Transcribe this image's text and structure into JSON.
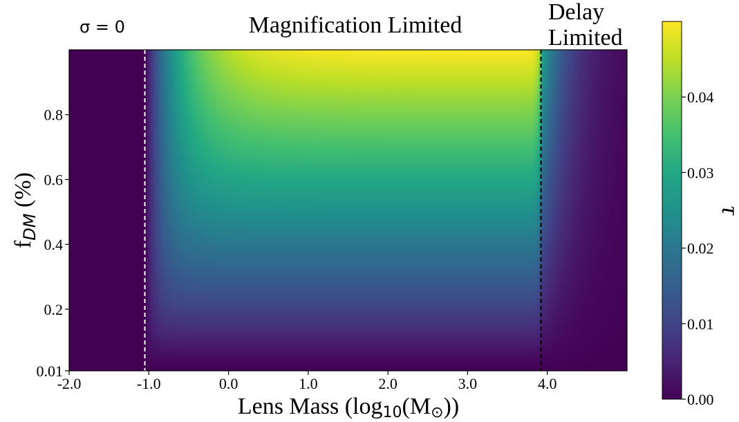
{
  "chart_data": {
    "type": "heatmap",
    "annotation": "σ = 0",
    "regions": [
      {
        "lines": [
          "Magnification Limited"
        ]
      },
      {
        "lines": [
          "Delay",
          "Limited"
        ]
      }
    ],
    "xlabel": {
      "text": "Lens Mass (log",
      "sub": "10",
      "mid": "(M",
      "sun": "⊙",
      "end": "))"
    },
    "ylabel": {
      "text": "f",
      "sub": "DM",
      "end": " (%)"
    },
    "xlim": [
      -2.0,
      5.0
    ],
    "ylim": [
      0.01,
      1.0
    ],
    "x_ticks": [
      {
        "value": -2.0,
        "label": "-2.0"
      },
      {
        "value": -1.0,
        "label": "-1.0"
      },
      {
        "value": 0.0,
        "label": "0.0"
      },
      {
        "value": 1.0,
        "label": "1.0"
      },
      {
        "value": 2.0,
        "label": "2.0"
      },
      {
        "value": 3.0,
        "label": "3.0"
      },
      {
        "value": 4.0,
        "label": "4.0"
      }
    ],
    "y_ticks": [
      {
        "value": 0.01,
        "label": "0.01"
      },
      {
        "value": 0.2,
        "label": "0.2"
      },
      {
        "value": 0.4,
        "label": "0.4"
      },
      {
        "value": 0.6,
        "label": "0.6"
      },
      {
        "value": 0.8,
        "label": "0.8"
      }
    ],
    "vlines": [
      {
        "x": -1.05,
        "color": "#ffffff",
        "style": "dashed"
      },
      {
        "x": 3.92,
        "color": "#000000",
        "style": "dashed"
      }
    ],
    "colorbar": {
      "label": "τ",
      "colormap": "viridis",
      "range": [
        0.0,
        0.05
      ],
      "ticks": [
        {
          "value": 0.0,
          "label": "0.00"
        },
        {
          "value": 0.01,
          "label": "0.01"
        },
        {
          "value": 0.02,
          "label": "0.02"
        },
        {
          "value": 0.03,
          "label": "0.03"
        },
        {
          "value": 0.04,
          "label": "0.04"
        }
      ]
    },
    "tau_model": {
      "tau_max": 0.05,
      "lower_edge_log10M": -1.05,
      "upper_edge_log10M": 3.92
    }
  }
}
